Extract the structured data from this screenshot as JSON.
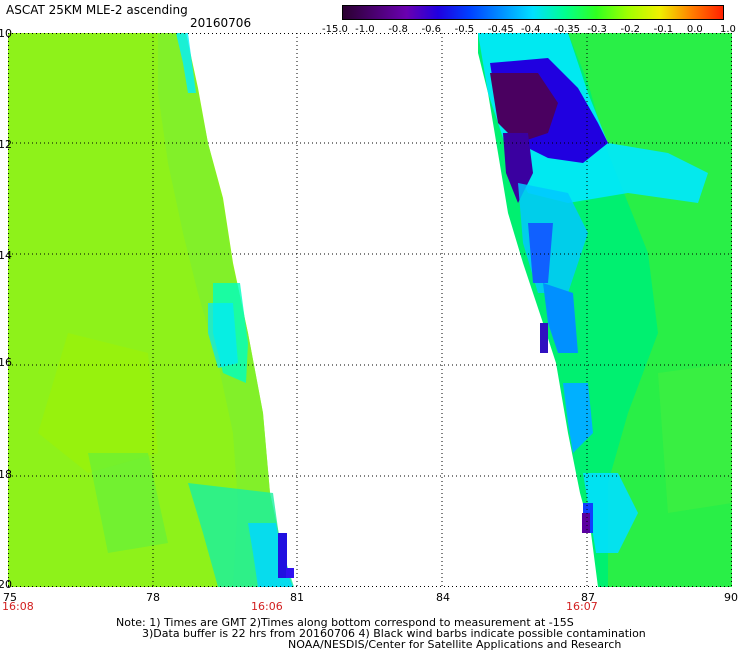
{
  "header": {
    "title": "ASCAT 25KM MLE-2 ascending",
    "date": "20160706"
  },
  "colorbar": {
    "labels": [
      "-15.0",
      "-1.0",
      "-0.8",
      "-0.6",
      "-0.5",
      "-0.45",
      "-0.4",
      "-0.35",
      "-0.3",
      "-0.2",
      "-0.1",
      "0.0",
      "1.0"
    ],
    "colors": [
      "#2a0030",
      "#4a0070",
      "#6a00b0",
      "#2000e0",
      "#0040ff",
      "#0090ff",
      "#00e0ff",
      "#00ff90",
      "#30ff20",
      "#a0ff00",
      "#f0f000",
      "#ff8000",
      "#ff2000"
    ]
  },
  "axes": {
    "x_ticks": [
      "75",
      "78",
      "81",
      "84",
      "87",
      "90"
    ],
    "y_ticks": [
      "10",
      "12",
      "14",
      "16",
      "18",
      "20"
    ],
    "lon_range": [
      75,
      90
    ],
    "lat_range": [
      10,
      20
    ]
  },
  "pass_times": [
    "16:08",
    "16:06",
    "16:07"
  ],
  "footer": {
    "line1": "Note: 1) Times are GMT 2)Times along bottom correspond to measurement at -15S",
    "line2": "3)Data buffer is 22 hrs from 20160706 4) Black wind barbs indicate possible contamination",
    "line3": "NOAA/NESDIS/Center for Satellite Applications and Research"
  }
}
